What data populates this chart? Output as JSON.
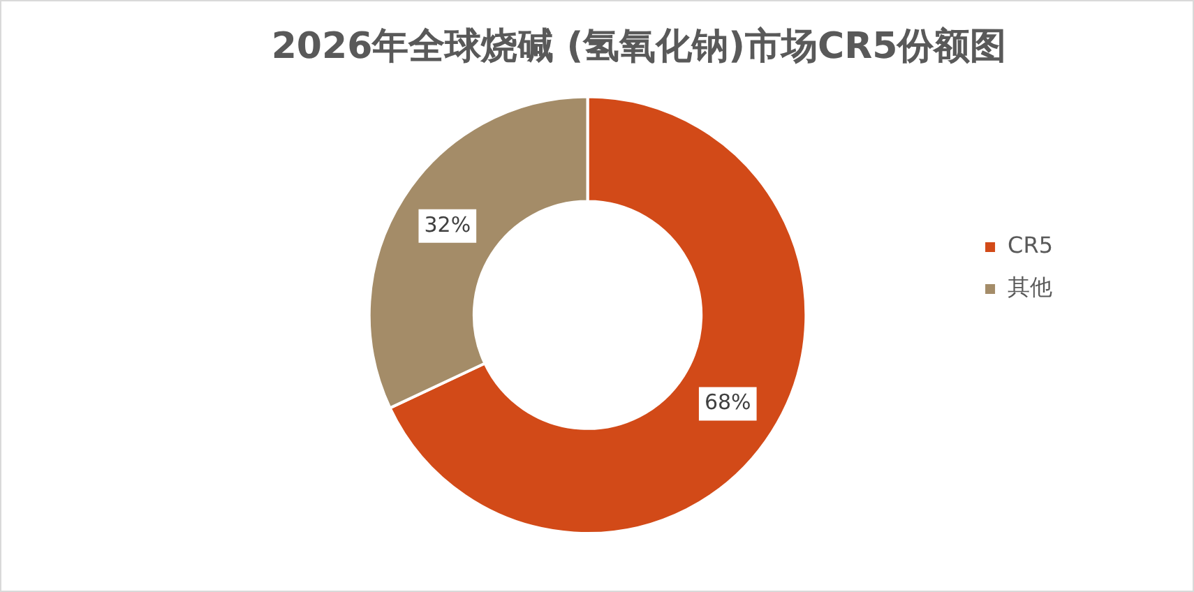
{
  "chart_data": {
    "type": "donut",
    "title": "2026年全球烧碱 (氢氧化钠)市场CR5份额图",
    "categories": [
      "CR5",
      "其他"
    ],
    "values": [
      68,
      32
    ],
    "colors": [
      "#d24a18",
      "#a48c68"
    ],
    "value_labels": [
      "68%",
      "32%"
    ],
    "legend": "right"
  }
}
